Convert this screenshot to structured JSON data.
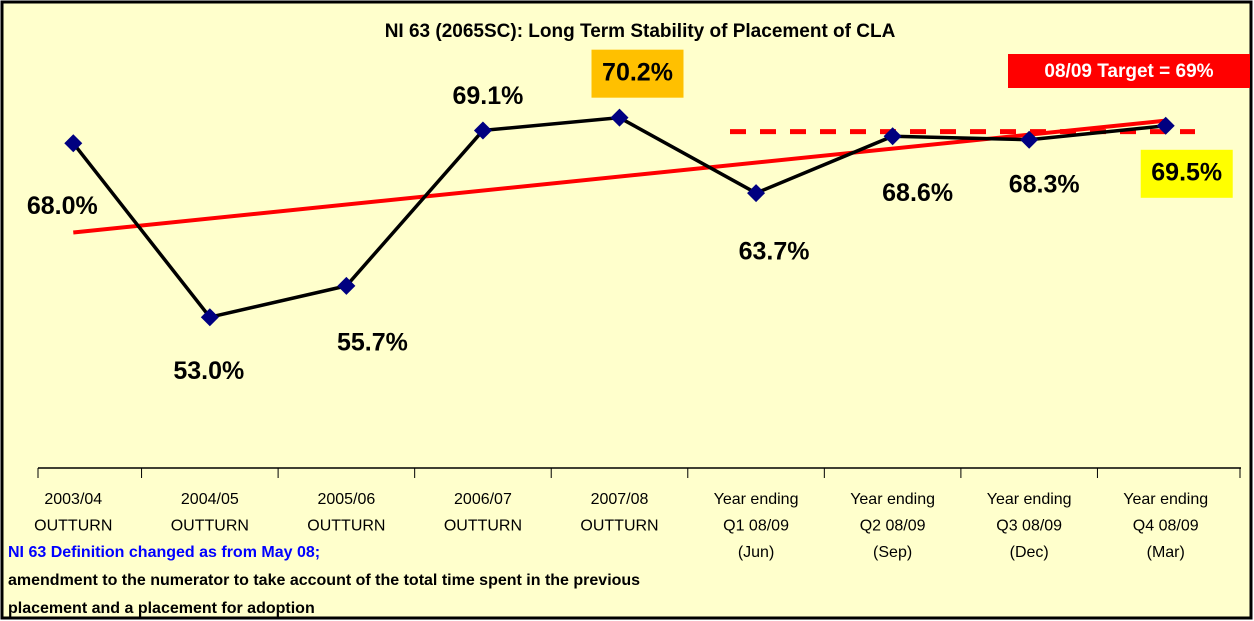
{
  "chart_data": {
    "type": "line",
    "title": "NI 63 (2065SC): Long Term Stability of Placement of CLA",
    "categories": [
      [
        "2003/04",
        "OUTTURN"
      ],
      [
        "2004/05",
        "OUTTURN"
      ],
      [
        "2005/06",
        "OUTTURN"
      ],
      [
        "2006/07",
        "OUTTURN"
      ],
      [
        "2007/08",
        "OUTTURN"
      ],
      [
        "Year ending",
        "Q1 08/09",
        "(Jun)"
      ],
      [
        "Year ending",
        "Q2 08/09",
        "(Sep)"
      ],
      [
        "Year ending",
        "Q3 08/09",
        "(Dec)"
      ],
      [
        "Year ending",
        "Q4 08/09",
        "(Mar)"
      ]
    ],
    "values": [
      68.0,
      53.0,
      55.7,
      69.1,
      70.2,
      63.7,
      68.6,
      68.3,
      69.5
    ],
    "value_labels": [
      "68.0%",
      "53.0%",
      "55.7%",
      "69.1%",
      "70.2%",
      "63.7%",
      "68.6%",
      "68.3%",
      "69.5%"
    ],
    "value_label_backgrounds": [
      null,
      null,
      null,
      null,
      "#ffc000",
      null,
      null,
      null,
      "#ffff00"
    ],
    "color": "#000000",
    "marker_color": "#000080",
    "trendline": true,
    "trendline_color": "#ff0000",
    "target": {
      "value": 69,
      "label": "08/09 Target = 69%",
      "color": "#ff0000"
    },
    "ylim": [
      40,
      80
    ],
    "note": [
      "NI 63 Definition changed as from May 08;",
      "amendment to the numerator to take account of the total time spent in the previous",
      "placement and a placement for adoption"
    ],
    "note_colors": [
      "#0000ff",
      "#000000",
      "#000000"
    ]
  }
}
